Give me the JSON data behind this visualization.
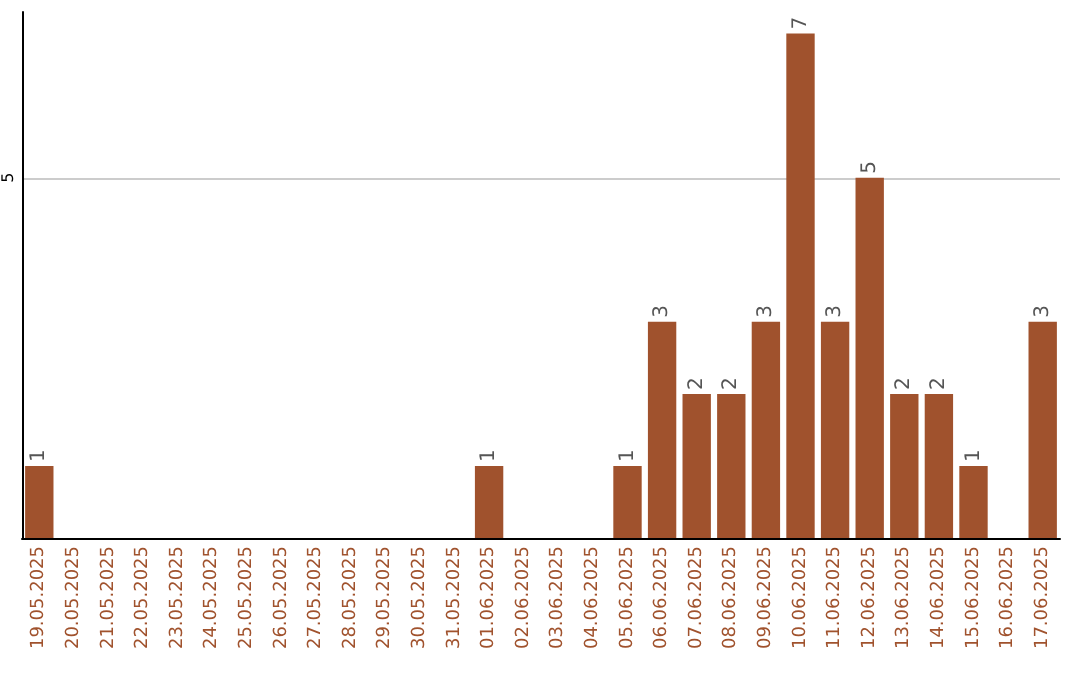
{
  "chart_data": {
    "type": "bar",
    "categories": [
      "19.05.2025",
      "20.05.2025",
      "21.05.2025",
      "22.05.2025",
      "23.05.2025",
      "24.05.2025",
      "25.05.2025",
      "26.05.2025",
      "27.05.2025",
      "28.05.2025",
      "29.05.2025",
      "30.05.2025",
      "31.05.2025",
      "01.06.2025",
      "02.06.2025",
      "03.06.2025",
      "04.06.2025",
      "05.06.2025",
      "06.06.2025",
      "07.06.2025",
      "08.06.2025",
      "09.06.2025",
      "10.06.2025",
      "11.06.2025",
      "12.06.2025",
      "13.06.2025",
      "14.06.2025",
      "15.06.2025",
      "16.06.2025",
      "17.06.2025"
    ],
    "values": [
      1,
      0,
      0,
      0,
      0,
      0,
      0,
      0,
      0,
      0,
      0,
      0,
      0,
      1,
      0,
      0,
      0,
      1,
      3,
      2,
      2,
      3,
      7,
      3,
      5,
      2,
      2,
      1,
      0,
      3
    ],
    "value_labels": [
      "1",
      null,
      null,
      null,
      null,
      null,
      null,
      null,
      null,
      null,
      null,
      null,
      null,
      "1",
      null,
      null,
      null,
      "1",
      "3",
      "2",
      "2",
      "3",
      "7",
      "3",
      "5",
      "2",
      "2",
      "1",
      null,
      "3"
    ],
    "color": "#a0522d",
    "ylim": [
      0,
      7.3
    ],
    "yticks": [
      5
    ],
    "grid": "y"
  }
}
